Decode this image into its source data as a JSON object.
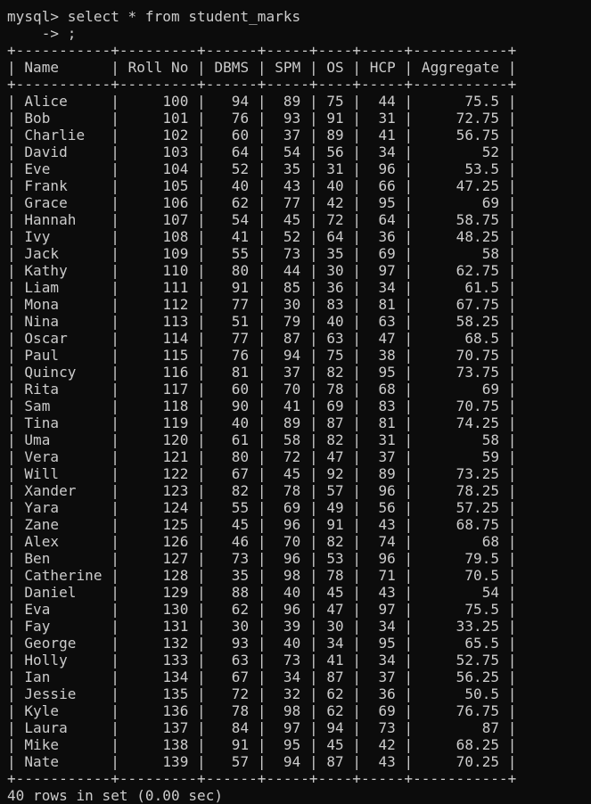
{
  "terminal": {
    "command_line": "mysql> select * from student_marks",
    "continuation_line": "    -> ;",
    "status_line": "40 rows in set (0.00 sec)"
  },
  "table": {
    "columns": [
      "Name",
      "Roll No",
      "DBMS",
      "SPM",
      "OS",
      "HCP",
      "Aggregate"
    ],
    "rows": [
      [
        "Alice",
        "100",
        "94",
        "89",
        "75",
        "44",
        "75.5"
      ],
      [
        "Bob",
        "101",
        "76",
        "93",
        "91",
        "31",
        "72.75"
      ],
      [
        "Charlie",
        "102",
        "60",
        "37",
        "89",
        "41",
        "56.75"
      ],
      [
        "David",
        "103",
        "64",
        "54",
        "56",
        "34",
        "52"
      ],
      [
        "Eve",
        "104",
        "52",
        "35",
        "31",
        "96",
        "53.5"
      ],
      [
        "Frank",
        "105",
        "40",
        "43",
        "40",
        "66",
        "47.25"
      ],
      [
        "Grace",
        "106",
        "62",
        "77",
        "42",
        "95",
        "69"
      ],
      [
        "Hannah",
        "107",
        "54",
        "45",
        "72",
        "64",
        "58.75"
      ],
      [
        "Ivy",
        "108",
        "41",
        "52",
        "64",
        "36",
        "48.25"
      ],
      [
        "Jack",
        "109",
        "55",
        "73",
        "35",
        "69",
        "58"
      ],
      [
        "Kathy",
        "110",
        "80",
        "44",
        "30",
        "97",
        "62.75"
      ],
      [
        "Liam",
        "111",
        "91",
        "85",
        "36",
        "34",
        "61.5"
      ],
      [
        "Mona",
        "112",
        "77",
        "30",
        "83",
        "81",
        "67.75"
      ],
      [
        "Nina",
        "113",
        "51",
        "79",
        "40",
        "63",
        "58.25"
      ],
      [
        "Oscar",
        "114",
        "77",
        "87",
        "63",
        "47",
        "68.5"
      ],
      [
        "Paul",
        "115",
        "76",
        "94",
        "75",
        "38",
        "70.75"
      ],
      [
        "Quincy",
        "116",
        "81",
        "37",
        "82",
        "95",
        "73.75"
      ],
      [
        "Rita",
        "117",
        "60",
        "70",
        "78",
        "68",
        "69"
      ],
      [
        "Sam",
        "118",
        "90",
        "41",
        "69",
        "83",
        "70.75"
      ],
      [
        "Tina",
        "119",
        "40",
        "89",
        "87",
        "81",
        "74.25"
      ],
      [
        "Uma",
        "120",
        "61",
        "58",
        "82",
        "31",
        "58"
      ],
      [
        "Vera",
        "121",
        "80",
        "72",
        "47",
        "37",
        "59"
      ],
      [
        "Will",
        "122",
        "67",
        "45",
        "92",
        "89",
        "73.25"
      ],
      [
        "Xander",
        "123",
        "82",
        "78",
        "57",
        "96",
        "78.25"
      ],
      [
        "Yara",
        "124",
        "55",
        "69",
        "49",
        "56",
        "57.25"
      ],
      [
        "Zane",
        "125",
        "45",
        "96",
        "91",
        "43",
        "68.75"
      ],
      [
        "Alex",
        "126",
        "46",
        "70",
        "82",
        "74",
        "68"
      ],
      [
        "Ben",
        "127",
        "73",
        "96",
        "53",
        "96",
        "79.5"
      ],
      [
        "Catherine",
        "128",
        "35",
        "98",
        "78",
        "71",
        "70.5"
      ],
      [
        "Daniel",
        "129",
        "88",
        "40",
        "45",
        "43",
        "54"
      ],
      [
        "Eva",
        "130",
        "62",
        "96",
        "47",
        "97",
        "75.5"
      ],
      [
        "Fay",
        "131",
        "30",
        "39",
        "30",
        "34",
        "33.25"
      ],
      [
        "George",
        "132",
        "93",
        "40",
        "34",
        "95",
        "65.5"
      ],
      [
        "Holly",
        "133",
        "63",
        "73",
        "41",
        "34",
        "52.75"
      ],
      [
        "Ian",
        "134",
        "67",
        "34",
        "87",
        "37",
        "56.25"
      ],
      [
        "Jessie",
        "135",
        "72",
        "32",
        "62",
        "36",
        "50.5"
      ],
      [
        "Kyle",
        "136",
        "78",
        "98",
        "62",
        "69",
        "76.75"
      ],
      [
        "Laura",
        "137",
        "84",
        "97",
        "94",
        "73",
        "87"
      ],
      [
        "Mike",
        "138",
        "91",
        "95",
        "45",
        "42",
        "68.25"
      ],
      [
        "Nate",
        "139",
        "57",
        "94",
        "87",
        "43",
        "70.25"
      ]
    ]
  },
  "colors": {
    "background": "#0c0c0c",
    "text": "#cccccc"
  }
}
